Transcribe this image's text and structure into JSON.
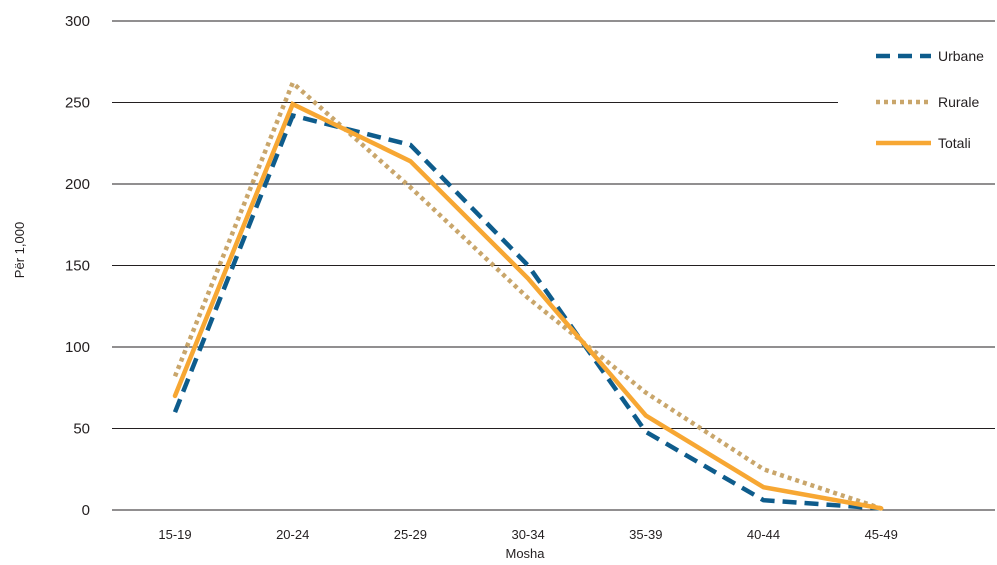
{
  "chart_data": {
    "type": "line",
    "categories": [
      "15-19",
      "20-24",
      "25-29",
      "30-34",
      "35-39",
      "40-44",
      "45-49"
    ],
    "series": [
      {
        "name": "Urbane",
        "values": [
          60,
          242,
          224,
          150,
          48,
          6,
          1
        ],
        "color": "#0e5c8c",
        "style": "dashed"
      },
      {
        "name": "Rurale",
        "values": [
          82,
          262,
          198,
          130,
          72,
          25,
          1
        ],
        "color": "#c9a66b",
        "style": "dotted"
      },
      {
        "name": "Totali",
        "values": [
          70,
          249,
          214,
          142,
          58,
          14,
          1
        ],
        "color": "#f7a733",
        "style": "solid"
      }
    ],
    "xlabel": "Mosha",
    "ylabel": "Për 1,000",
    "ylim": [
      0,
      300
    ],
    "yticks": [
      0,
      50,
      100,
      150,
      200,
      250,
      300
    ],
    "grid": true,
    "legend_position": "top-right"
  }
}
